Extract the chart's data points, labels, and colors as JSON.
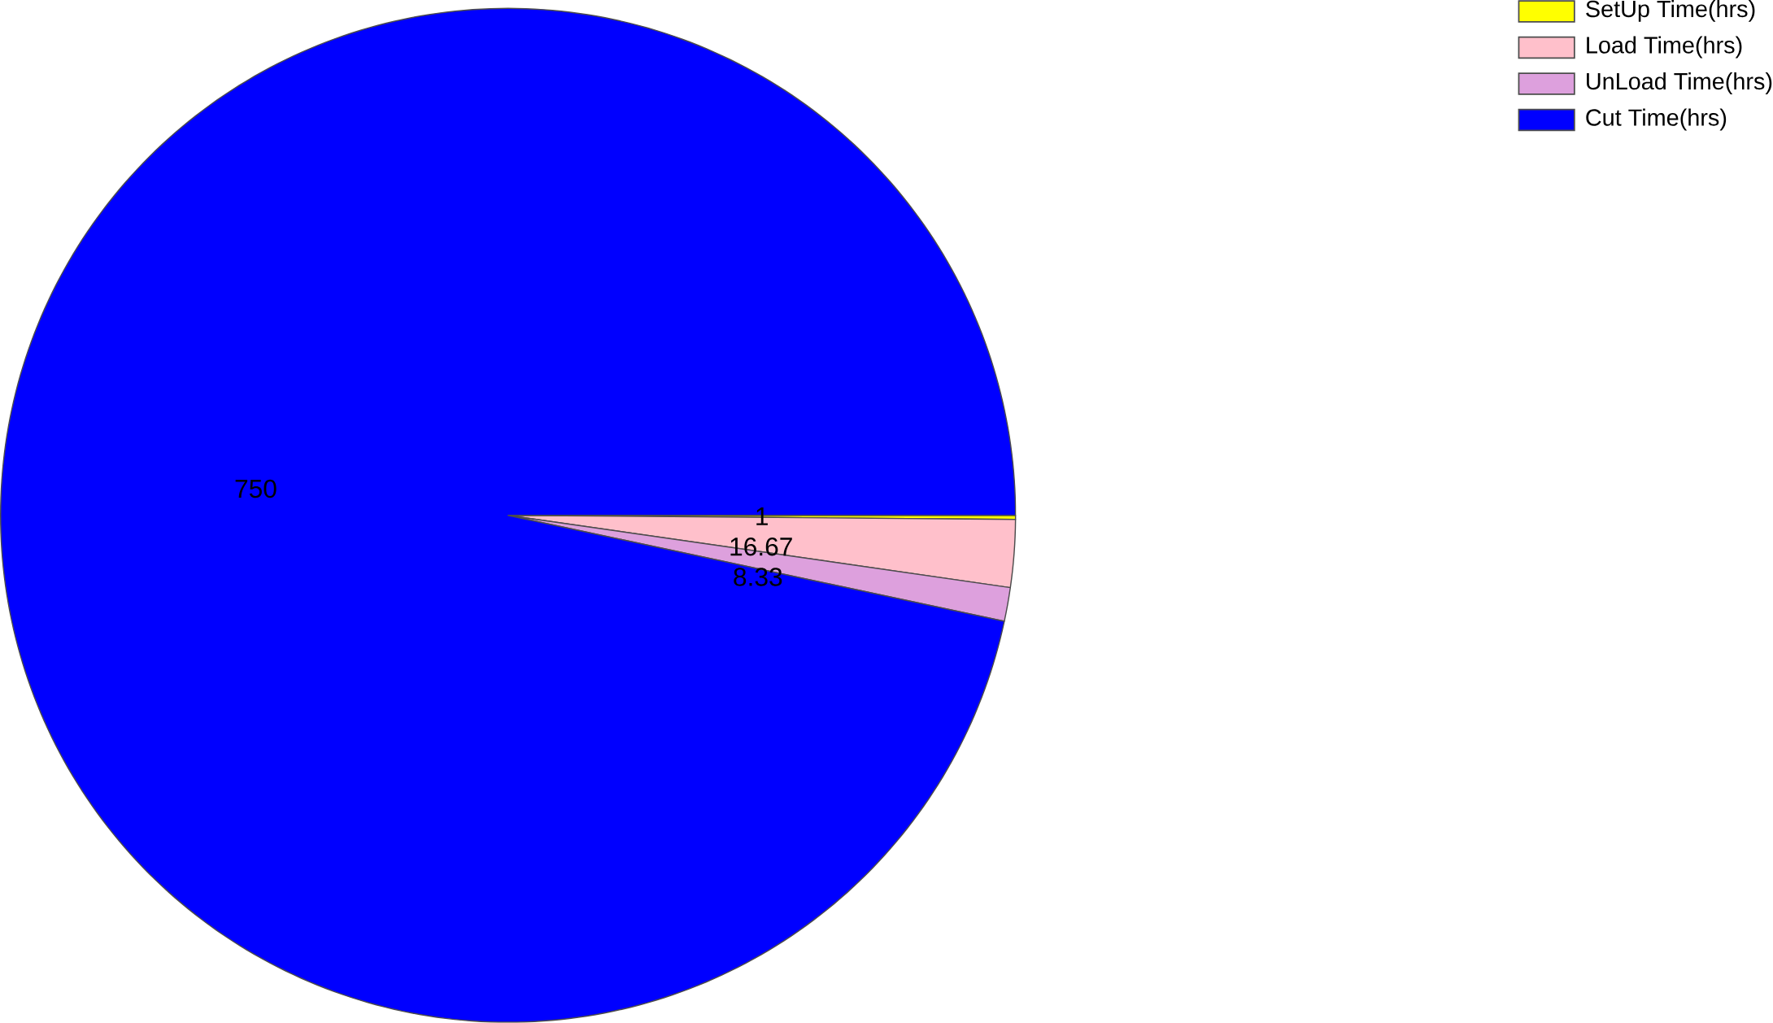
{
  "chart_data": {
    "type": "pie",
    "categories": [
      "SetUp Time(hrs)",
      "Load Time(hrs)",
      "UnLoad Time(hrs)",
      "Cut Time(hrs)"
    ],
    "values": [
      1,
      16.67,
      8.33,
      750
    ],
    "colors": [
      "#ffff00",
      "#ffc0cb",
      "#dda0dd",
      "#0000ff"
    ],
    "data_labels": true,
    "legend": "top right"
  }
}
